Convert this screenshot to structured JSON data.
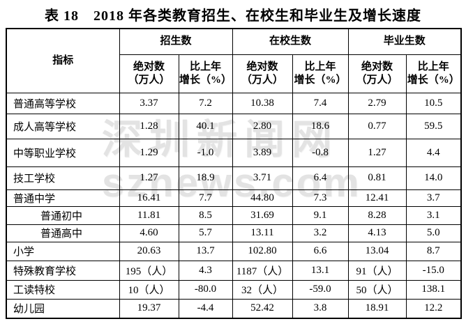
{
  "title": "表 18　2018 年各类教育招生、在校生和毕业生及增长速度",
  "watermark": {
    "line1": "深圳新闻网",
    "line2": "sznews.com"
  },
  "colors": {
    "text": "#000000",
    "border": "#000000",
    "background": "#ffffff",
    "watermark": "#e3e3e3"
  },
  "table": {
    "indicator_header": "指标",
    "group_headers": [
      "招生数",
      "在校生数",
      "毕业生数"
    ],
    "sub_headers": {
      "absolute": "绝对数\n（万人）",
      "growth": "比上年\n增长（%）"
    },
    "rows": [
      {
        "label": "普通高等学校",
        "indent": false,
        "values": [
          "3.37",
          "7.2",
          "10.38",
          "7.4",
          "2.79",
          "10.5"
        ]
      },
      {
        "label": "成人高等学校",
        "indent": false,
        "values": [
          "1.28",
          "40.1",
          "2.80",
          "18.6",
          "0.77",
          "59.5"
        ]
      },
      {
        "label": "中等职业学校",
        "indent": false,
        "values": [
          "1.29",
          "-1.0",
          "3.89",
          "-0.8",
          "1.27",
          "4.4"
        ]
      },
      {
        "label": "技工学校",
        "indent": false,
        "values": [
          "1.27",
          "18.9",
          "3.71",
          "6.4",
          "0.81",
          "14.0"
        ]
      },
      {
        "label": "普通中学",
        "indent": false,
        "values": [
          "16.41",
          "7.7",
          "44.80",
          "7.3",
          "12.41",
          "3.7"
        ]
      },
      {
        "label": "普通初中",
        "indent": true,
        "values": [
          "11.81",
          "8.5",
          "31.69",
          "9.1",
          "8.28",
          "3.1"
        ]
      },
      {
        "label": "普通高中",
        "indent": true,
        "values": [
          "4.60",
          "5.7",
          "13.11",
          "3.2",
          "4.13",
          "5.0"
        ]
      },
      {
        "label": "小学",
        "indent": false,
        "values": [
          "20.63",
          "13.7",
          "102.80",
          "6.6",
          "13.04",
          "8.7"
        ]
      },
      {
        "label": "特殊教育学校",
        "indent": false,
        "values": [
          "195（人）",
          "4.3",
          "1187（人）",
          "13.1",
          "91（人）",
          "-15.0"
        ]
      },
      {
        "label": "工读特校",
        "indent": false,
        "values": [
          "10（人）",
          "-80.0",
          "32（人）",
          "-59.0",
          "50（人）",
          "138.1"
        ]
      },
      {
        "label": "幼儿园",
        "indent": false,
        "values": [
          "19.37",
          "-4.4",
          "52.42",
          "3.8",
          "18.91",
          "12.2"
        ]
      }
    ]
  }
}
